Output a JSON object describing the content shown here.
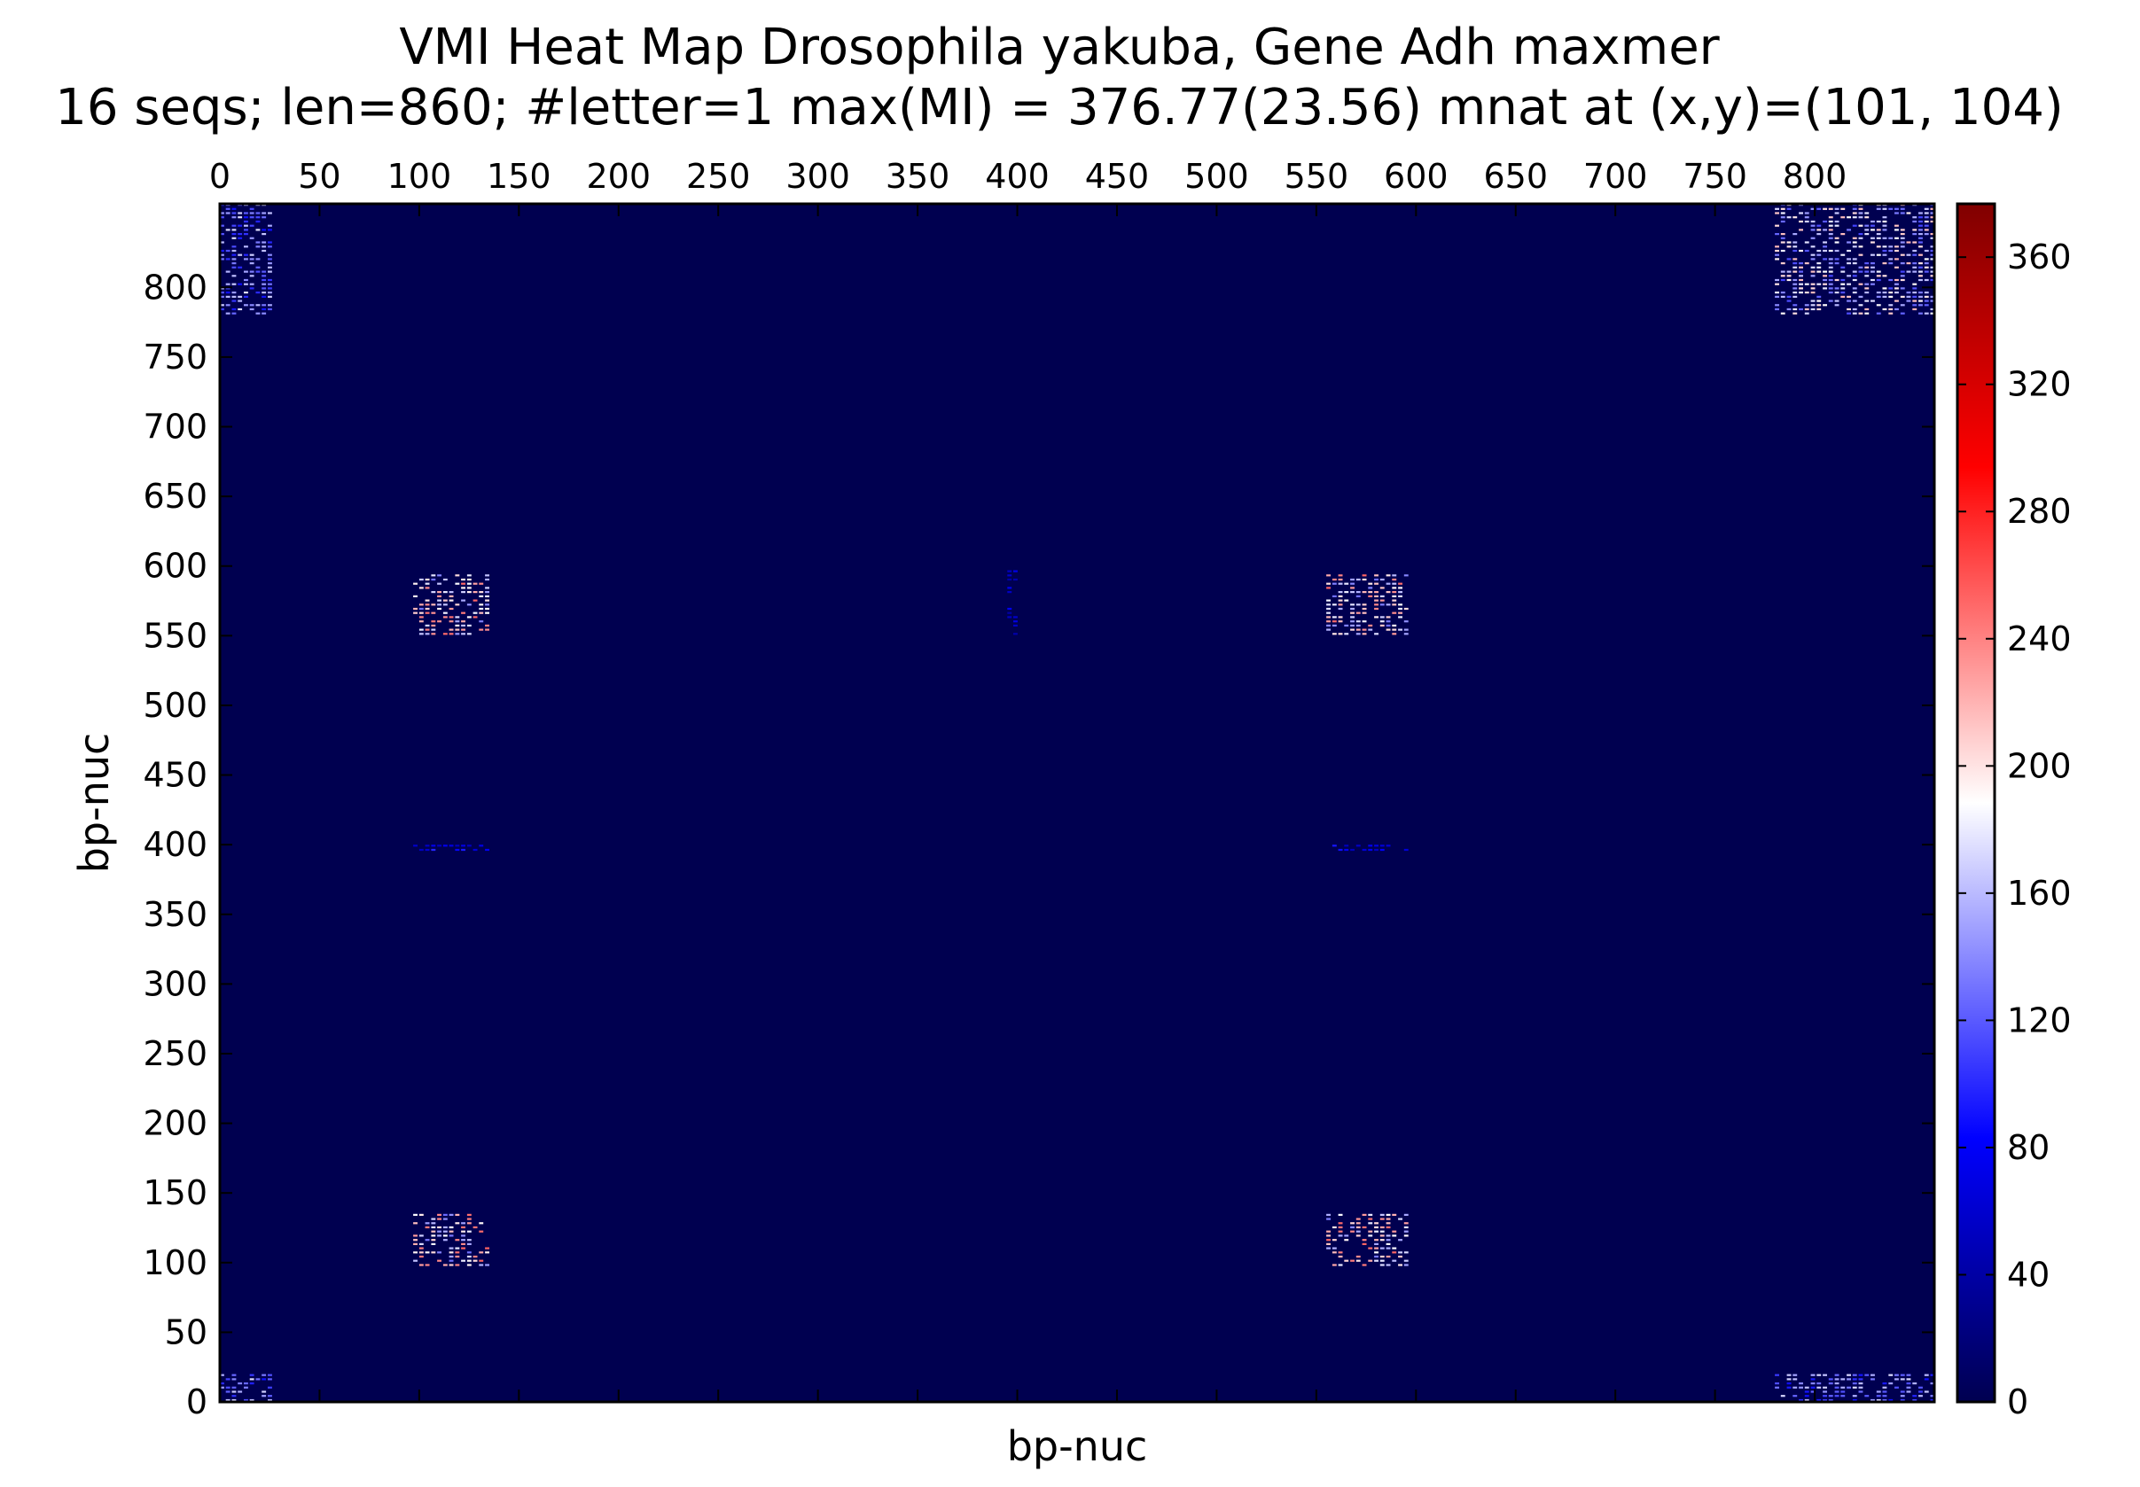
{
  "chart_data": {
    "type": "heatmap",
    "title": "VMI Heat Map Drosophila yakuba, Gene Adh maxmer",
    "subtitle": "16 seqs; len=860; #letter=1 max(MI) = 376.77(23.56) mnat at (x,y)=(101, 104)",
    "xlabel": "bp-nuc",
    "ylabel": "bp-nuc",
    "xlim": [
      0,
      860
    ],
    "ylim": [
      0,
      860
    ],
    "x_ticks": [
      0,
      50,
      100,
      150,
      200,
      250,
      300,
      350,
      400,
      450,
      500,
      550,
      600,
      650,
      700,
      750,
      800
    ],
    "y_ticks": [
      0,
      50,
      100,
      150,
      200,
      250,
      300,
      350,
      400,
      450,
      500,
      550,
      600,
      650,
      700,
      750,
      800
    ],
    "x_axis_position": "top",
    "colorbar": {
      "min": 0,
      "max": 376.77,
      "ticks": [
        0,
        40,
        80,
        120,
        160,
        200,
        240,
        280,
        320,
        360
      ],
      "colormap": [
        "#000050",
        "#0000ff",
        "#ffffff",
        "#ff0000",
        "#800000"
      ]
    },
    "background_color": "#000050",
    "hotspots": [
      {
        "x": [
          97,
          135
        ],
        "y": [
          97,
          135
        ],
        "level": 230
      },
      {
        "x": [
          555,
          595
        ],
        "y": [
          97,
          135
        ],
        "level": 230
      },
      {
        "x": [
          97,
          135
        ],
        "y": [
          550,
          595
        ],
        "level": 230
      },
      {
        "x": [
          555,
          595
        ],
        "y": [
          550,
          595
        ],
        "level": 230
      },
      {
        "x": [
          0,
          25
        ],
        "y": [
          780,
          860
        ],
        "level": 160
      },
      {
        "x": [
          0,
          25
        ],
        "y": [
          0,
          20
        ],
        "level": 160
      },
      {
        "x": [
          780,
          860
        ],
        "y": [
          0,
          20
        ],
        "level": 160
      },
      {
        "x": [
          780,
          860
        ],
        "y": [
          780,
          860
        ],
        "level": 200
      },
      {
        "x": [
          97,
          135
        ],
        "y": [
          395,
          400
        ],
        "level": 90
      },
      {
        "x": [
          555,
          595
        ],
        "y": [
          395,
          400
        ],
        "level": 90
      },
      {
        "x": [
          395,
          400
        ],
        "y": [
          550,
          600
        ],
        "level": 70
      }
    ]
  }
}
